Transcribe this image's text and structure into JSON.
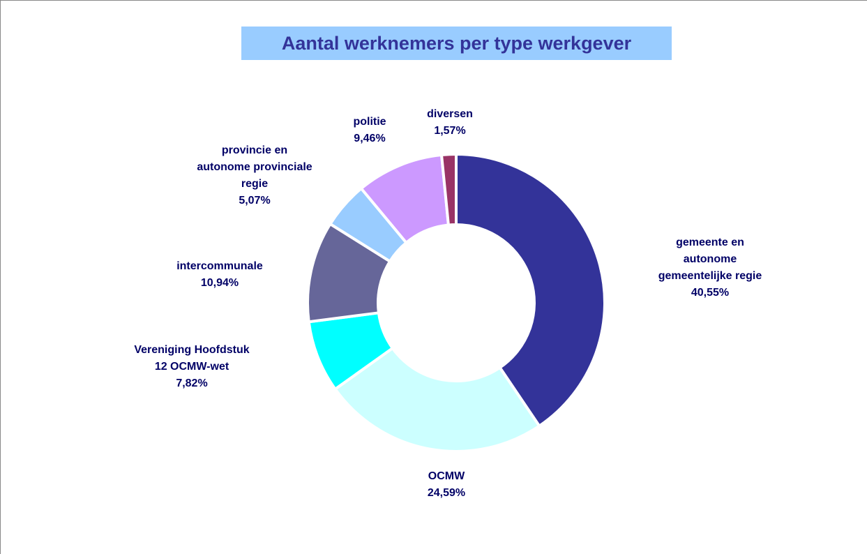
{
  "chart_data": {
    "type": "donut",
    "title": "Aantal werknemers per type werkgever",
    "categories": [
      "gemeente en\nautonome\ngemeentelijke regie",
      "OCMW",
      "Vereniging Hoofdstuk\n12 OCMW-wet",
      "intercommunale",
      "provincie en\nautonome provinciale\nregie",
      "politie",
      "diversen"
    ],
    "values": [
      40.55,
      24.59,
      7.82,
      10.94,
      5.07,
      9.46,
      1.57
    ],
    "value_labels": [
      "40,55%",
      "24,59%",
      "7,82%",
      "10,94%",
      "5,07%",
      "9,46%",
      "1,57%"
    ],
    "colors": [
      "#333399",
      "#ccffff",
      "#00ffff",
      "#666699",
      "#99ccff",
      "#cc99ff",
      "#993366"
    ]
  }
}
